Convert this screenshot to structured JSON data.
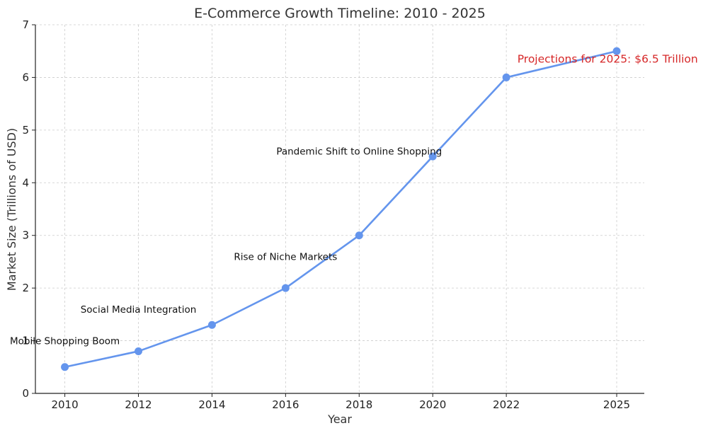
{
  "chart_data": {
    "type": "line",
    "title": "E-Commerce Growth Timeline: 2010 - 2025",
    "xlabel": "Year",
    "ylabel": "Market Size (Trillions of USD)",
    "x": [
      2010,
      2012,
      2014,
      2016,
      2018,
      2020,
      2022,
      2025
    ],
    "series": [
      {
        "values": [
          0.5,
          0.8,
          1.3,
          2.0,
          3.0,
          4.5,
          6.0,
          6.5
        ],
        "color": "#6495ed",
        "marker": "circle"
      }
    ],
    "xlim": [
      2009.2,
      2025.75
    ],
    "ylim": [
      0,
      7
    ],
    "xticks": [
      2010,
      2012,
      2014,
      2016,
      2018,
      2020,
      2022,
      2025
    ],
    "yticks": [
      0,
      1,
      2,
      3,
      4,
      5,
      6,
      7
    ],
    "grid": true,
    "annotations": [
      {
        "text": "Mobile Shopping Boom",
        "x": 2010,
        "y": 1.0,
        "color": "#111111"
      },
      {
        "text": "Social Media Integration",
        "x": 2012,
        "y": 1.6,
        "color": "#111111"
      },
      {
        "text": "Rise of Niche Markets",
        "x": 2016,
        "y": 2.6,
        "color": "#111111"
      },
      {
        "text": "Pandemic Shift to Online Shopping",
        "x": 2018,
        "y": 4.6,
        "color": "#111111"
      },
      {
        "text": "Projections for 2025: $6.5 Trillion",
        "x": 2022.3,
        "y": 6.35,
        "color": "#d62728"
      }
    ]
  }
}
